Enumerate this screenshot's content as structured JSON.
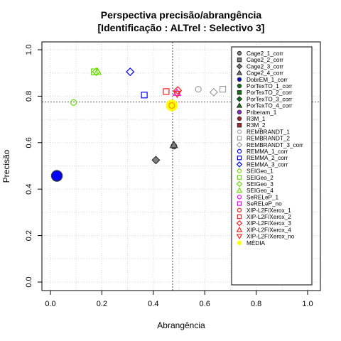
{
  "chart_data": {
    "type": "scatter",
    "title": "Perspectiva precisão/abrangência",
    "subtitle": "[Identificação : ALTrel : Selectivo 3]",
    "xlabel": "Abrangência",
    "ylabel": "Precisão",
    "xlim": [
      0,
      1
    ],
    "ylim": [
      0,
      1
    ],
    "xticks": [
      "0.0",
      "0.2",
      "0.4",
      "0.6",
      "0.8",
      "1.0"
    ],
    "yticks": [
      "0.0",
      "0.2",
      "0.4",
      "0.6",
      "0.8",
      "1.0"
    ],
    "grid": true,
    "legend_position": "right",
    "reference_lines": {
      "x": 0.475,
      "y": 0.775
    },
    "series": [
      {
        "name": "Cage2_1_corr",
        "color": "#808080",
        "marker": "circle",
        "fill": true,
        "points": []
      },
      {
        "name": "Cage2_2_corr",
        "color": "#808080",
        "marker": "square",
        "fill": true,
        "points": []
      },
      {
        "name": "Cage2_3_corr",
        "color": "#808080",
        "marker": "diamond",
        "fill": true,
        "points": [
          [
            0.41,
            0.525
          ]
        ]
      },
      {
        "name": "Cage2_4_corr",
        "color": "#808080",
        "marker": "triangle",
        "fill": true,
        "points": [
          [
            0.48,
            0.59
          ]
        ]
      },
      {
        "name": "DobrEM_1_corr",
        "color": "#0000ff",
        "marker": "circle",
        "fill": true,
        "size": 1.9,
        "points": [
          [
            0.025,
            0.457
          ]
        ]
      },
      {
        "name": "PorTexTO_1_corr",
        "color": "#008000",
        "marker": "circle",
        "fill": true,
        "points": []
      },
      {
        "name": "PorTexTO_2_corr",
        "color": "#008000",
        "marker": "square",
        "fill": true,
        "points": []
      },
      {
        "name": "PorTexTO_3_corr",
        "color": "#008000",
        "marker": "diamond",
        "fill": true,
        "points": []
      },
      {
        "name": "PorTexTO_4_corr",
        "color": "#008000",
        "marker": "triangle",
        "fill": true,
        "points": []
      },
      {
        "name": "Priberam_1",
        "color": "#a020f0",
        "marker": "circle",
        "fill": true,
        "points": []
      },
      {
        "name": "R3M_1",
        "color": "#b22222",
        "marker": "circle",
        "fill": true,
        "points": []
      },
      {
        "name": "R3M_2",
        "color": "#b22222",
        "marker": "square",
        "fill": true,
        "points": []
      },
      {
        "name": "REMBRANDT_1",
        "color": "#a0a0a0",
        "marker": "circle",
        "fill": false,
        "points": [
          [
            0.575,
            0.83
          ]
        ]
      },
      {
        "name": "REMBRANDT_2",
        "color": "#a0a0a0",
        "marker": "square",
        "fill": false,
        "points": [
          [
            0.67,
            0.83
          ]
        ]
      },
      {
        "name": "REMBRANDT_3_corr",
        "color": "#a0a0a0",
        "marker": "diamond",
        "fill": false,
        "points": [
          [
            0.635,
            0.817
          ]
        ]
      },
      {
        "name": "REMMA_1_corr",
        "color": "#0000ff",
        "marker": "circle",
        "fill": false,
        "points": []
      },
      {
        "name": "REMMA_2_corr",
        "color": "#0000ff",
        "marker": "square",
        "fill": false,
        "points": [
          [
            0.365,
            0.805
          ]
        ]
      },
      {
        "name": "REMMA_3_corr",
        "color": "#0000ff",
        "marker": "diamond",
        "fill": false,
        "points": [
          [
            0.31,
            0.905
          ]
        ]
      },
      {
        "name": "SEIGeo_1",
        "color": "#66dd00",
        "marker": "circle",
        "fill": false,
        "points": [
          [
            0.09,
            0.773
          ]
        ]
      },
      {
        "name": "SEIGeo_2",
        "color": "#66dd00",
        "marker": "square",
        "fill": false,
        "points": [
          [
            0.17,
            0.905
          ]
        ]
      },
      {
        "name": "SEIGeo_3",
        "color": "#66dd00",
        "marker": "diamond",
        "fill": false,
        "points": [
          [
            0.178,
            0.905
          ]
        ]
      },
      {
        "name": "SEIGeo_4",
        "color": "#66dd00",
        "marker": "triangle",
        "fill": false,
        "points": [
          [
            0.183,
            0.905
          ]
        ]
      },
      {
        "name": "SeRELeP_1",
        "color": "#ff00ff",
        "marker": "circle",
        "fill": false,
        "points": []
      },
      {
        "name": "SeRELeP_no",
        "color": "#ff00ff",
        "marker": "square",
        "fill": false,
        "points": []
      },
      {
        "name": "XIP-L2F/Xerox_1",
        "color": "#ff2020",
        "marker": "circle",
        "fill": false,
        "points": []
      },
      {
        "name": "XIP-L2F/Xerox_2",
        "color": "#ff2020",
        "marker": "square",
        "fill": false,
        "points": [
          [
            0.45,
            0.82
          ]
        ]
      },
      {
        "name": "XIP-L2F/Xerox_3",
        "color": "#ff2020",
        "marker": "diamond",
        "fill": false,
        "points": [
          [
            0.495,
            0.825
          ]
        ]
      },
      {
        "name": "XIP-L2F/Xerox_4",
        "color": "#ff2020",
        "marker": "triangle",
        "fill": false,
        "points": []
      },
      {
        "name": "XIP-L2F/Xerox_no",
        "color": "#ff2020",
        "marker": "triangle-down",
        "fill": false,
        "points": [
          [
            0.493,
            0.81
          ]
        ]
      },
      {
        "name": "MÉDIA",
        "color": "#ffff00",
        "marker": "circle",
        "fill": true,
        "size": 1.9,
        "points": [
          [
            0.472,
            0.76
          ]
        ]
      }
    ],
    "extra_marks": [
      {
        "marker": "circle",
        "color": "#808080",
        "fill": true,
        "points": [
          [
            0.48,
            0.585
          ]
        ]
      },
      {
        "marker": "circle",
        "color": "#ff8c00",
        "fill": false,
        "points": [
          [
            0.472,
            0.76
          ]
        ]
      },
      {
        "marker": "triangle",
        "color": "#ff00ff",
        "fill": false,
        "points": [
          [
            0.492,
            0.815
          ]
        ]
      }
    ]
  }
}
